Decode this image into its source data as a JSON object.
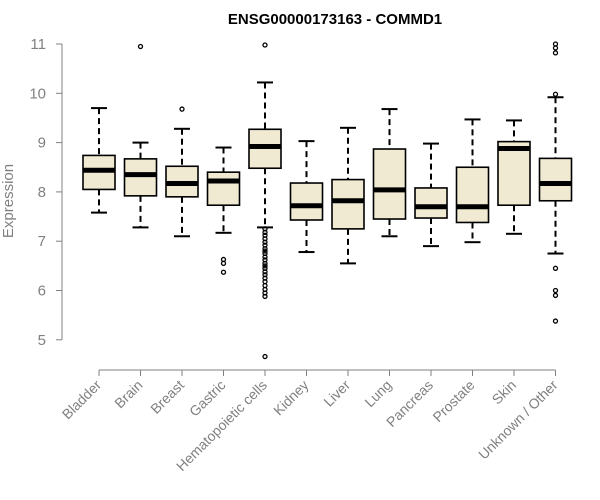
{
  "chart_data": {
    "type": "boxplot",
    "title": "ENSG00000173163 - COMMD1",
    "xlabel": "",
    "ylabel": "Expression",
    "ylim": [
      4.6,
      11.1
    ],
    "yticks": [
      5,
      6,
      7,
      8,
      9,
      10,
      11
    ],
    "categories": [
      "Bladder",
      "Brain",
      "Breast",
      "Gastric",
      "Hematopoietic cells",
      "Kidney",
      "Liver",
      "Lung",
      "Pancreas",
      "Prostate",
      "Skin",
      "Unknown / Other"
    ],
    "box_fill": "#f0ead2",
    "series": [
      {
        "category": "Bladder",
        "whisker_low": 7.58,
        "q1": 8.05,
        "median": 8.44,
        "q3": 8.74,
        "whisker_high": 9.7,
        "outliers": []
      },
      {
        "category": "Brain",
        "whisker_low": 7.28,
        "q1": 7.92,
        "median": 8.35,
        "q3": 8.67,
        "whisker_high": 9.0,
        "outliers": [
          10.95
        ]
      },
      {
        "category": "Breast",
        "whisker_low": 7.1,
        "q1": 7.9,
        "median": 8.17,
        "q3": 8.52,
        "whisker_high": 9.28,
        "outliers": [
          9.68
        ]
      },
      {
        "category": "Gastric",
        "whisker_low": 7.17,
        "q1": 7.73,
        "median": 8.22,
        "q3": 8.4,
        "whisker_high": 8.9,
        "outliers": [
          6.63,
          6.55,
          6.37
        ]
      },
      {
        "category": "Hematopoietic cells",
        "whisker_low": 7.28,
        "q1": 8.48,
        "median": 8.92,
        "q3": 9.27,
        "whisker_high": 10.22,
        "outliers": [
          10.98,
          7.25,
          7.18,
          7.12,
          7.05,
          6.98,
          6.92,
          6.85,
          6.8,
          6.75,
          6.68,
          6.62,
          6.55,
          6.5,
          6.45,
          6.38,
          6.32,
          6.25,
          6.18,
          6.1,
          6.02,
          5.95,
          5.88,
          4.66
        ]
      },
      {
        "category": "Kidney",
        "whisker_low": 6.78,
        "q1": 7.43,
        "median": 7.72,
        "q3": 8.18,
        "whisker_high": 9.03,
        "outliers": []
      },
      {
        "category": "Liver",
        "whisker_low": 6.55,
        "q1": 7.25,
        "median": 7.82,
        "q3": 8.25,
        "whisker_high": 9.3,
        "outliers": []
      },
      {
        "category": "Lung",
        "whisker_low": 7.1,
        "q1": 7.45,
        "median": 8.04,
        "q3": 8.87,
        "whisker_high": 9.68,
        "outliers": []
      },
      {
        "category": "Pancreas",
        "whisker_low": 6.9,
        "q1": 7.47,
        "median": 7.7,
        "q3": 8.08,
        "whisker_high": 8.98,
        "outliers": []
      },
      {
        "category": "Prostate",
        "whisker_low": 6.98,
        "q1": 7.38,
        "median": 7.7,
        "q3": 8.5,
        "whisker_high": 9.47,
        "outliers": []
      },
      {
        "category": "Skin",
        "whisker_low": 7.15,
        "q1": 7.73,
        "median": 8.88,
        "q3": 9.02,
        "whisker_high": 9.45,
        "outliers": []
      },
      {
        "category": "Unknown / Other",
        "whisker_low": 6.75,
        "q1": 7.82,
        "median": 8.17,
        "q3": 8.68,
        "whisker_high": 9.92,
        "outliers": [
          11.0,
          10.92,
          10.82,
          9.98,
          6.45,
          6.0,
          5.9,
          5.38
        ]
      }
    ]
  }
}
